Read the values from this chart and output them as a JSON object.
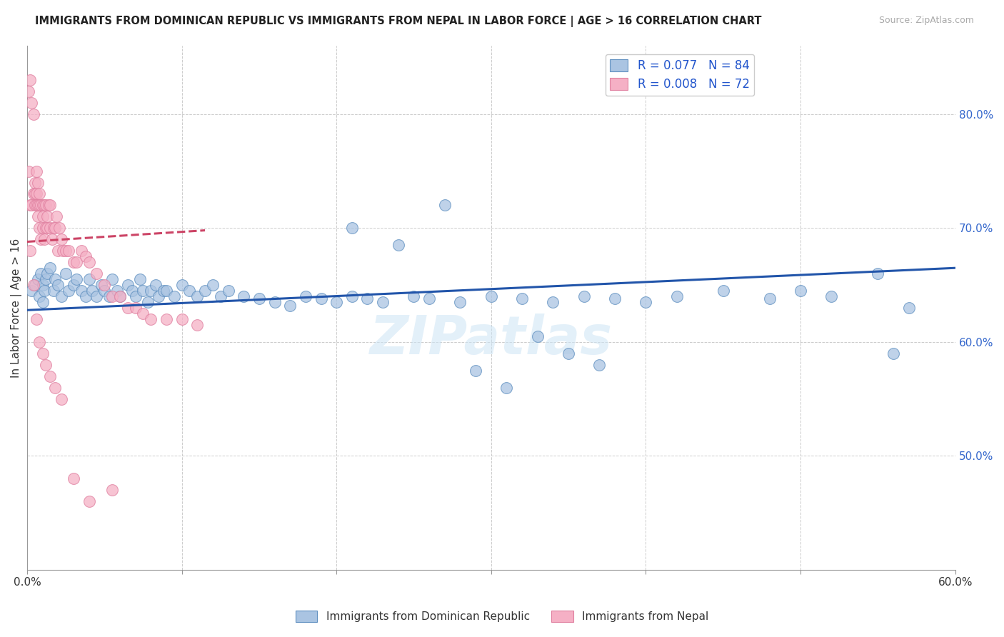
{
  "title": "IMMIGRANTS FROM DOMINICAN REPUBLIC VS IMMIGRANTS FROM NEPAL IN LABOR FORCE | AGE > 16 CORRELATION CHART",
  "source": "Source: ZipAtlas.com",
  "ylabel_left": "In Labor Force | Age > 16",
  "x_min": 0.0,
  "x_max": 0.6,
  "y_min": 0.4,
  "y_max": 0.86,
  "right_y_ticks": [
    0.5,
    0.6,
    0.7,
    0.8
  ],
  "right_y_tick_labels": [
    "50.0%",
    "60.0%",
    "70.0%",
    "80.0%"
  ],
  "legend_r1": "R = 0.077",
  "legend_n1": "N = 84",
  "legend_r2": "R = 0.008",
  "legend_n2": "N = 72",
  "blue_color": "#aac4e2",
  "blue_edge_color": "#6090c0",
  "blue_line_color": "#2255aa",
  "pink_color": "#f5b0c5",
  "pink_edge_color": "#e080a0",
  "pink_line_color": "#cc4466",
  "legend_text_color": "#2255cc",
  "watermark": "ZIPatlas",
  "blue_scatter_x": [
    0.003,
    0.005,
    0.007,
    0.008,
    0.009,
    0.01,
    0.01,
    0.011,
    0.012,
    0.013,
    0.015,
    0.017,
    0.018,
    0.02,
    0.022,
    0.025,
    0.027,
    0.03,
    0.032,
    0.035,
    0.038,
    0.04,
    0.042,
    0.045,
    0.048,
    0.05,
    0.053,
    0.055,
    0.058,
    0.06,
    0.065,
    0.068,
    0.07,
    0.073,
    0.075,
    0.078,
    0.08,
    0.083,
    0.085,
    0.088,
    0.09,
    0.095,
    0.1,
    0.105,
    0.11,
    0.115,
    0.12,
    0.125,
    0.13,
    0.14,
    0.15,
    0.16,
    0.17,
    0.18,
    0.19,
    0.2,
    0.21,
    0.22,
    0.23,
    0.25,
    0.26,
    0.28,
    0.3,
    0.32,
    0.34,
    0.36,
    0.38,
    0.4,
    0.42,
    0.45,
    0.48,
    0.5,
    0.52,
    0.55,
    0.56,
    0.57,
    0.21,
    0.24,
    0.27,
    0.29,
    0.31,
    0.33,
    0.35,
    0.37
  ],
  "blue_scatter_y": [
    0.645,
    0.65,
    0.655,
    0.64,
    0.66,
    0.65,
    0.635,
    0.645,
    0.655,
    0.66,
    0.665,
    0.645,
    0.655,
    0.65,
    0.64,
    0.66,
    0.645,
    0.65,
    0.655,
    0.645,
    0.64,
    0.655,
    0.645,
    0.64,
    0.65,
    0.645,
    0.64,
    0.655,
    0.645,
    0.64,
    0.65,
    0.645,
    0.64,
    0.655,
    0.645,
    0.635,
    0.645,
    0.65,
    0.64,
    0.645,
    0.645,
    0.64,
    0.65,
    0.645,
    0.64,
    0.645,
    0.65,
    0.64,
    0.645,
    0.64,
    0.638,
    0.635,
    0.632,
    0.64,
    0.638,
    0.635,
    0.64,
    0.638,
    0.635,
    0.64,
    0.638,
    0.635,
    0.64,
    0.638,
    0.635,
    0.64,
    0.638,
    0.635,
    0.64,
    0.645,
    0.638,
    0.645,
    0.64,
    0.66,
    0.59,
    0.63,
    0.7,
    0.685,
    0.72,
    0.575,
    0.56,
    0.605,
    0.59,
    0.58
  ],
  "pink_scatter_x": [
    0.001,
    0.001,
    0.002,
    0.002,
    0.003,
    0.003,
    0.004,
    0.004,
    0.005,
    0.005,
    0.005,
    0.006,
    0.006,
    0.006,
    0.007,
    0.007,
    0.007,
    0.008,
    0.008,
    0.008,
    0.009,
    0.009,
    0.01,
    0.01,
    0.01,
    0.011,
    0.011,
    0.012,
    0.012,
    0.013,
    0.013,
    0.014,
    0.015,
    0.015,
    0.016,
    0.017,
    0.018,
    0.019,
    0.02,
    0.021,
    0.022,
    0.023,
    0.025,
    0.027,
    0.03,
    0.032,
    0.035,
    0.038,
    0.04,
    0.045,
    0.05,
    0.055,
    0.06,
    0.065,
    0.07,
    0.075,
    0.08,
    0.09,
    0.1,
    0.11,
    0.002,
    0.004,
    0.006,
    0.008,
    0.01,
    0.012,
    0.015,
    0.018,
    0.022,
    0.03,
    0.04,
    0.055
  ],
  "pink_scatter_y": [
    0.75,
    0.82,
    0.72,
    0.83,
    0.72,
    0.81,
    0.73,
    0.8,
    0.72,
    0.74,
    0.73,
    0.72,
    0.75,
    0.73,
    0.71,
    0.74,
    0.72,
    0.7,
    0.72,
    0.73,
    0.69,
    0.72,
    0.7,
    0.72,
    0.71,
    0.69,
    0.72,
    0.7,
    0.72,
    0.7,
    0.71,
    0.72,
    0.7,
    0.72,
    0.69,
    0.7,
    0.7,
    0.71,
    0.68,
    0.7,
    0.69,
    0.68,
    0.68,
    0.68,
    0.67,
    0.67,
    0.68,
    0.675,
    0.67,
    0.66,
    0.65,
    0.64,
    0.64,
    0.63,
    0.63,
    0.625,
    0.62,
    0.62,
    0.62,
    0.615,
    0.68,
    0.65,
    0.62,
    0.6,
    0.59,
    0.58,
    0.57,
    0.56,
    0.55,
    0.48,
    0.46,
    0.47
  ],
  "blue_trend_x": [
    0.0,
    0.6
  ],
  "blue_trend_y": [
    0.628,
    0.665
  ],
  "pink_trend_x": [
    0.0,
    0.115
  ],
  "pink_trend_y": [
    0.688,
    0.698
  ]
}
